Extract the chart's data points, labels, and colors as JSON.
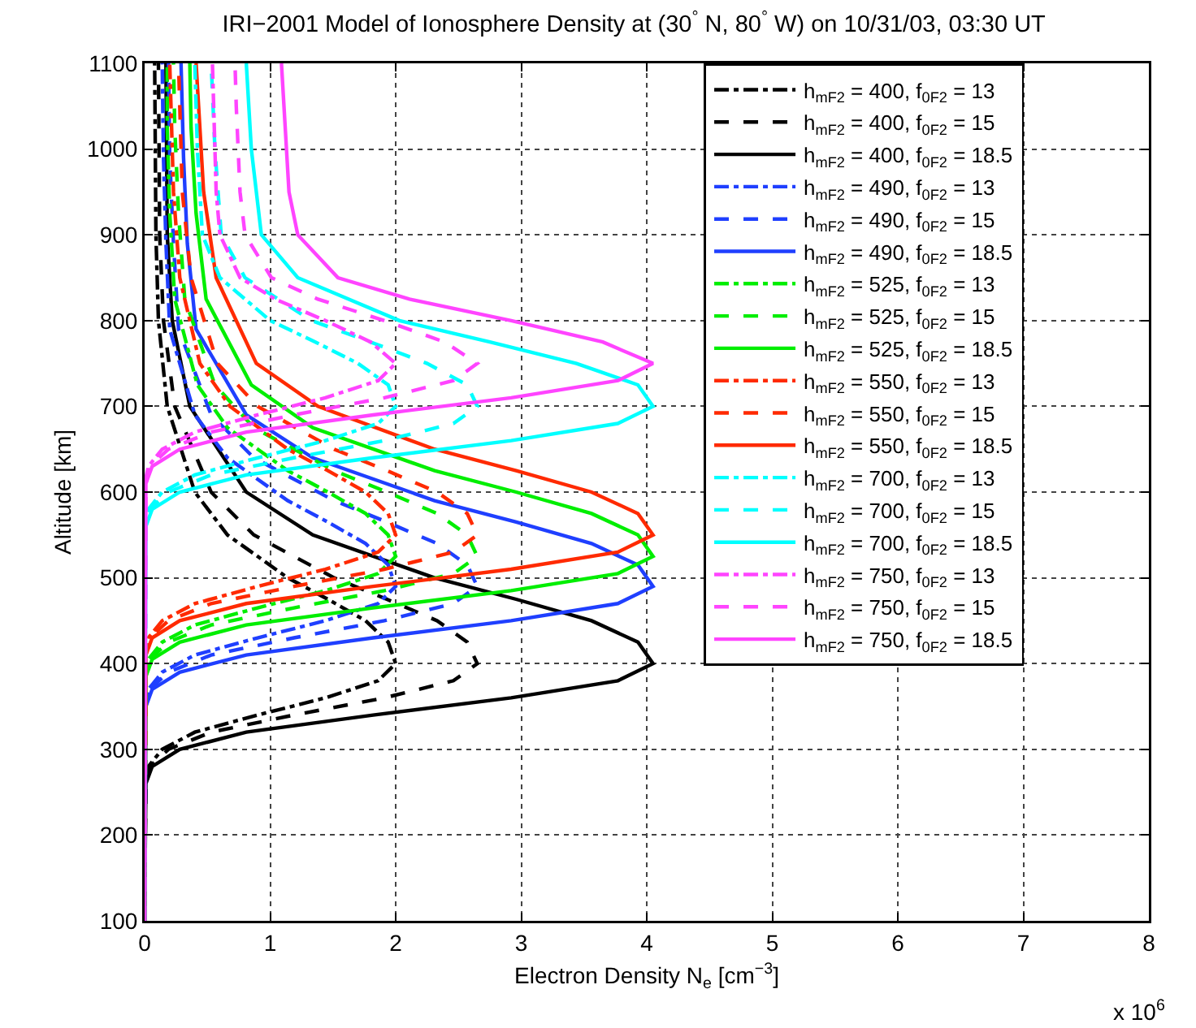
{
  "chart_data": {
    "type": "line",
    "title": "IRI−2001 Model of Ionosphere Density at (30$^{°}$ N, 80$^{°}$ W) on 10/31/03, 03:30 UT",
    "xlabel": "Electron Density N$_{e}$ [cm$^{−3}$]",
    "ylabel": "Altitude [km]",
    "annotations": [
      "x 10$^{6}$"
    ],
    "xlim": [
      0,
      8
    ],
    "xticks": [
      0,
      1,
      2,
      3,
      4,
      5,
      6,
      7,
      8
    ],
    "ylim": [
      100,
      1100
    ],
    "yticks": [
      100,
      200,
      300,
      400,
      500,
      600,
      700,
      800,
      900,
      1000,
      1100
    ],
    "grid": true,
    "legend": "top right",
    "series": [
      {
        "name": "h$_{mF2}$ = 400, f$_{0F2}$ = 13",
        "color": "#000000",
        "line_style": "dashdot",
        "x": [
          0,
          0,
          0.03,
          0.14,
          0.4,
          0.9,
          1.44,
          1.86,
          2.0,
          1.94,
          1.76,
          1.46,
          1.14,
          0.66,
          0.4,
          0.18,
          0.11,
          0.09,
          0.08
        ],
        "values": [
          100,
          260,
          280,
          300,
          320,
          340,
          360,
          380,
          400,
          425,
          450,
          475,
          500,
          550,
          600,
          700,
          800,
          900,
          1100
        ]
      },
      {
        "name": "h$_{mF2}$ = 400, f$_{0F2}$ = 15",
        "color": "#000000",
        "line_style": "dashed",
        "x": [
          0,
          0.01,
          0.04,
          0.19,
          0.53,
          1.19,
          1.91,
          2.46,
          2.65,
          2.57,
          2.33,
          1.93,
          1.51,
          0.87,
          0.53,
          0.24,
          0.15,
          0.12,
          0.11
        ],
        "values": [
          100,
          260,
          280,
          300,
          320,
          340,
          360,
          380,
          400,
          425,
          450,
          475,
          500,
          550,
          600,
          700,
          800,
          900,
          1100
        ]
      },
      {
        "name": "h$_{mF2}$ = 400, f$_{0F2}$ = 18.5",
        "color": "#000000",
        "line_style": "solid",
        "x": [
          0,
          0.01,
          0.06,
          0.28,
          0.81,
          1.82,
          2.92,
          3.77,
          4.05,
          3.93,
          3.56,
          2.96,
          2.31,
          1.34,
          0.81,
          0.36,
          0.22,
          0.18,
          0.17
        ],
        "values": [
          100,
          260,
          280,
          300,
          320,
          340,
          360,
          380,
          400,
          425,
          450,
          475,
          500,
          550,
          600,
          700,
          800,
          900,
          1100
        ]
      },
      {
        "name": "h$_{mF2}$ = 490, f$_{0F2}$ = 13",
        "color": "#1f3fff",
        "line_style": "dashdot",
        "x": [
          0,
          0,
          0.03,
          0.14,
          0.4,
          0.9,
          1.44,
          1.86,
          2.0,
          1.94,
          1.76,
          1.46,
          1.14,
          0.66,
          0.4,
          0.2,
          0.17,
          0.15,
          0.14
        ],
        "values": [
          100,
          350,
          370,
          390,
          410,
          430,
          450,
          470,
          490,
          515,
          540,
          565,
          590,
          640,
          690,
          790,
          890,
          990,
          1100
        ]
      },
      {
        "name": "h$_{mF2}$ = 490, f$_{0F2}$ = 15",
        "color": "#1f3fff",
        "line_style": "dashed",
        "x": [
          0,
          0.01,
          0.04,
          0.19,
          0.53,
          1.19,
          1.91,
          2.46,
          2.65,
          2.57,
          2.33,
          1.93,
          1.51,
          0.87,
          0.53,
          0.27,
          0.23,
          0.2,
          0.19
        ],
        "values": [
          100,
          350,
          370,
          390,
          410,
          430,
          450,
          470,
          490,
          515,
          540,
          565,
          590,
          640,
          690,
          790,
          890,
          990,
          1100
        ]
      },
      {
        "name": "h$_{mF2}$ = 490, f$_{0F2}$ = 18.5",
        "color": "#1f3fff",
        "line_style": "solid",
        "x": [
          0,
          0.01,
          0.06,
          0.28,
          0.81,
          1.82,
          2.92,
          3.77,
          4.05,
          3.93,
          3.56,
          2.96,
          2.31,
          1.34,
          0.81,
          0.41,
          0.34,
          0.31,
          0.29
        ],
        "values": [
          100,
          350,
          370,
          390,
          410,
          430,
          450,
          470,
          490,
          515,
          540,
          565,
          590,
          640,
          690,
          790,
          890,
          990,
          1100
        ]
      },
      {
        "name": "h$_{mF2}$ = 525, f$_{0F2}$ = 13",
        "color": "#00ee00",
        "line_style": "dashdot",
        "x": [
          0,
          0,
          0.03,
          0.14,
          0.4,
          0.9,
          1.44,
          1.86,
          2.0,
          1.94,
          1.76,
          1.46,
          1.14,
          0.66,
          0.42,
          0.24,
          0.2,
          0.18,
          0.18
        ],
        "values": [
          100,
          385,
          405,
          425,
          445,
          465,
          485,
          505,
          525,
          550,
          575,
          600,
          625,
          675,
          725,
          825,
          925,
          1025,
          1100
        ]
      },
      {
        "name": "h$_{mF2}$ = 525, f$_{0F2}$ = 15",
        "color": "#00ee00",
        "line_style": "dashed",
        "x": [
          0,
          0.01,
          0.04,
          0.19,
          0.53,
          1.19,
          1.91,
          2.46,
          2.65,
          2.57,
          2.33,
          1.93,
          1.51,
          0.87,
          0.56,
          0.32,
          0.27,
          0.24,
          0.23
        ],
        "values": [
          100,
          385,
          405,
          425,
          445,
          465,
          485,
          505,
          525,
          550,
          575,
          600,
          625,
          675,
          725,
          825,
          925,
          1025,
          1100
        ]
      },
      {
        "name": "h$_{mF2}$ = 525, f$_{0F2}$ = 18.5",
        "color": "#00ee00",
        "line_style": "solid",
        "x": [
          0,
          0.01,
          0.06,
          0.28,
          0.81,
          1.82,
          2.92,
          3.77,
          4.05,
          3.93,
          3.56,
          2.96,
          2.31,
          1.34,
          0.85,
          0.49,
          0.41,
          0.37,
          0.36
        ],
        "values": [
          100,
          385,
          405,
          425,
          445,
          465,
          485,
          505,
          525,
          550,
          575,
          600,
          625,
          675,
          725,
          825,
          925,
          1025,
          1100
        ]
      },
      {
        "name": "h$_{mF2}$ = 550, f$_{0F2}$ = 13",
        "color": "#ff2a00",
        "line_style": "dashdot",
        "x": [
          0,
          0,
          0.03,
          0.14,
          0.4,
          0.9,
          1.44,
          1.86,
          2.0,
          1.94,
          1.76,
          1.46,
          1.14,
          0.68,
          0.44,
          0.28,
          0.23,
          0.21,
          0.2
        ],
        "values": [
          100,
          410,
          430,
          450,
          470,
          490,
          510,
          530,
          550,
          575,
          600,
          625,
          650,
          700,
          750,
          850,
          950,
          1050,
          1100
        ]
      },
      {
        "name": "h$_{mF2}$ = 550, f$_{0F2}$ = 15",
        "color": "#ff2a00",
        "line_style": "dashed",
        "x": [
          0,
          0.01,
          0.04,
          0.19,
          0.53,
          1.19,
          1.91,
          2.46,
          2.65,
          2.57,
          2.33,
          1.93,
          1.51,
          0.9,
          0.58,
          0.37,
          0.3,
          0.28,
          0.27
        ],
        "values": [
          100,
          410,
          430,
          450,
          470,
          490,
          510,
          530,
          550,
          575,
          600,
          625,
          650,
          700,
          750,
          850,
          950,
          1050,
          1100
        ]
      },
      {
        "name": "h$_{mF2}$ = 550, f$_{0F2}$ = 18.5",
        "color": "#ff2a00",
        "line_style": "solid",
        "x": [
          0,
          0.01,
          0.06,
          0.28,
          0.81,
          1.82,
          2.92,
          3.77,
          4.05,
          3.93,
          3.56,
          2.96,
          2.31,
          1.38,
          0.89,
          0.57,
          0.47,
          0.43,
          0.41
        ],
        "values": [
          100,
          410,
          430,
          450,
          470,
          490,
          510,
          530,
          550,
          575,
          600,
          625,
          650,
          700,
          750,
          850,
          950,
          1050,
          1100
        ]
      },
      {
        "name": "h$_{mF2}$ = 700, f$_{0F2}$ = 13",
        "color": "#00ffff",
        "line_style": "dashdot",
        "x": [
          0,
          0,
          0.03,
          0.14,
          0.4,
          0.9,
          1.44,
          1.86,
          2.0,
          1.94,
          1.7,
          1.36,
          1.0,
          0.6,
          0.46,
          0.42,
          0.4
        ],
        "values": [
          100,
          560,
          580,
          600,
          620,
          640,
          660,
          680,
          700,
          725,
          750,
          775,
          800,
          850,
          900,
          1000,
          1100
        ]
      },
      {
        "name": "h$_{mF2}$ = 700, f$_{0F2}$ = 15",
        "color": "#00ffff",
        "line_style": "dashed",
        "x": [
          0,
          0.01,
          0.04,
          0.19,
          0.53,
          1.19,
          1.91,
          2.46,
          2.65,
          2.57,
          2.25,
          1.8,
          1.33,
          0.8,
          0.61,
          0.56,
          0.53
        ],
        "values": [
          100,
          560,
          580,
          600,
          620,
          640,
          660,
          680,
          700,
          725,
          750,
          775,
          800,
          850,
          900,
          1000,
          1100
        ]
      },
      {
        "name": "h$_{mF2}$ = 700, f$_{0F2}$ = 18.5",
        "color": "#00ffff",
        "line_style": "solid",
        "x": [
          0,
          0.01,
          0.06,
          0.28,
          0.81,
          1.82,
          2.92,
          3.77,
          4.05,
          3.93,
          3.44,
          2.75,
          2.03,
          1.22,
          0.93,
          0.85,
          0.81
        ],
        "values": [
          100,
          560,
          580,
          600,
          620,
          640,
          660,
          680,
          700,
          725,
          750,
          775,
          800,
          850,
          900,
          1000,
          1100
        ]
      },
      {
        "name": "h$_{mF2}$ = 750, f$_{0F2}$ = 13",
        "color": "#ff44ff",
        "line_style": "dashdot",
        "x": [
          0,
          0,
          0.03,
          0.14,
          0.4,
          0.9,
          1.44,
          1.86,
          2.0,
          1.8,
          1.44,
          1.04,
          0.76,
          0.6,
          0.57,
          0.55,
          0.54
        ],
        "values": [
          100,
          610,
          630,
          650,
          670,
          690,
          710,
          730,
          750,
          775,
          800,
          825,
          850,
          900,
          950,
          1050,
          1100
        ]
      },
      {
        "name": "h$_{mF2}$ = 750, f$_{0F2}$ = 15",
        "color": "#ff44ff",
        "line_style": "dashed",
        "x": [
          0,
          0.01,
          0.04,
          0.19,
          0.53,
          1.19,
          1.91,
          2.46,
          2.65,
          2.39,
          1.91,
          1.38,
          1.01,
          0.8,
          0.76,
          0.73,
          0.72
        ],
        "values": [
          100,
          610,
          630,
          650,
          670,
          690,
          710,
          730,
          750,
          775,
          800,
          825,
          850,
          900,
          950,
          1050,
          1100
        ]
      },
      {
        "name": "h$_{mF2}$ = 750, f$_{0F2}$ = 18.5",
        "color": "#ff44ff",
        "line_style": "solid",
        "x": [
          0,
          0.01,
          0.06,
          0.28,
          0.81,
          1.82,
          2.92,
          3.77,
          4.05,
          3.65,
          2.92,
          2.11,
          1.54,
          1.22,
          1.15,
          1.11,
          1.09
        ],
        "values": [
          100,
          610,
          630,
          650,
          670,
          690,
          710,
          730,
          750,
          775,
          800,
          825,
          850,
          900,
          950,
          1050,
          1100
        ]
      }
    ]
  }
}
